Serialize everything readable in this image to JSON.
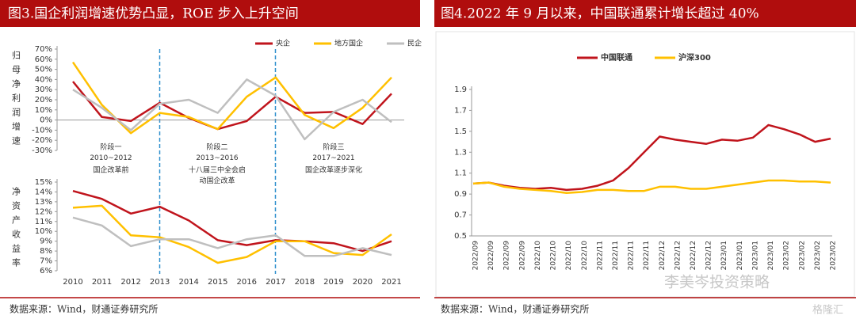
{
  "figures": [
    {
      "title": "图3.国企利润增速优势凸显，ROE 步入上升空间",
      "source": "数据来源：Wind，财通证券研究所"
    },
    {
      "title": "图4.2022 年 9 月以来，中国联通累计增长超过 40%",
      "source": "数据来源：Wind，财通证券研究所"
    }
  ],
  "watermark": [
    "李美岑投资策略",
    "格隆汇"
  ],
  "chart_data": [
    {
      "type": "line",
      "ylabel": "归母净利润增速",
      "ylim": [
        -30,
        70
      ],
      "yticks": [
        {
          "value": 70,
          "label": "70%"
        },
        {
          "value": 60,
          "label": "60%"
        },
        {
          "value": 50,
          "label": "50%"
        },
        {
          "value": 40,
          "label": "40%"
        },
        {
          "value": 30,
          "label": "30%"
        },
        {
          "value": 20,
          "label": "20%"
        },
        {
          "value": 10,
          "label": "10%"
        },
        {
          "value": 0,
          "label": "0%"
        },
        {
          "value": -10,
          "label": "-10%"
        },
        {
          "value": -20,
          "label": "-20%"
        },
        {
          "value": -30,
          "label": "-30%"
        }
      ],
      "legend": "top-right",
      "series": [
        {
          "name": "央企",
          "color": "#c0141c",
          "values": [
            38,
            3,
            -1,
            17,
            2,
            -9,
            -1,
            23,
            7,
            8,
            -4,
            26
          ]
        },
        {
          "name": "地方国企",
          "color": "#ffc000",
          "values": [
            57,
            15,
            -13,
            7,
            3,
            -9,
            23,
            42,
            5,
            -8,
            12,
            42
          ]
        },
        {
          "name": "民企",
          "color": "#bfbfbf",
          "values": [
            30,
            12,
            -10,
            16,
            20,
            7,
            40,
            24,
            -19,
            8,
            20,
            -2
          ]
        }
      ],
      "annotations": [
        [
          "阶段一",
          "2010~2012",
          "国企改革前"
        ],
        [
          "阶段二",
          "2013~2016",
          "十八届三中全会启",
          "动国企改革"
        ],
        [
          "阶段三",
          "2017~2021",
          "国企改革逐步深化"
        ]
      ]
    },
    {
      "type": "line",
      "ylabel": "净资产收益率",
      "categories": [
        "2010",
        "2011",
        "2012",
        "2013",
        "2014",
        "2015",
        "2016",
        "2017",
        "2018",
        "2019",
        "2020",
        "2021"
      ],
      "ylim": [
        6,
        15
      ],
      "yticks": [
        {
          "value": 15,
          "label": "15%"
        },
        {
          "value": 14,
          "label": "14%"
        },
        {
          "value": 13,
          "label": "13%"
        },
        {
          "value": 12,
          "label": "12%"
        },
        {
          "value": 11,
          "label": "11%"
        },
        {
          "value": 10,
          "label": "10%"
        },
        {
          "value": 9,
          "label": "9%"
        },
        {
          "value": 8,
          "label": "8%"
        },
        {
          "value": 7,
          "label": "7%"
        },
        {
          "value": 6,
          "label": "6%"
        }
      ],
      "series": [
        {
          "color": "#c0141c",
          "values": [
            14.1,
            13.3,
            11.8,
            12.5,
            11.1,
            9.1,
            8.6,
            9.1,
            9.0,
            8.8,
            8.0,
            9.0
          ]
        },
        {
          "color": "#ffc000",
          "values": [
            12.4,
            12.6,
            9.6,
            9.4,
            8.4,
            6.8,
            7.4,
            9.0,
            9.0,
            7.8,
            7.6,
            9.7
          ]
        },
        {
          "color": "#bfbfbf",
          "values": [
            11.4,
            10.6,
            8.5,
            9.2,
            9.2,
            8.3,
            9.2,
            9.6,
            7.5,
            7.5,
            8.3,
            7.6
          ]
        }
      ]
    },
    {
      "type": "line",
      "x": [
        "2022/09",
        "2022/09",
        "2022/09",
        "2022/09",
        "2022/10",
        "2022/10",
        "2022/10",
        "2022/10",
        "2022/11",
        "2022/11",
        "2022/11",
        "2022/11",
        "2022/12",
        "2022/12",
        "2022/12",
        "2022/12",
        "2023/01",
        "2023/01",
        "2023/01",
        "2023/01",
        "2023/02",
        "2023/02",
        "2023/02",
        "2023/02"
      ],
      "ylim": [
        0.5,
        1.9
      ],
      "yticks": [
        0.5,
        0.7,
        0.9,
        1.1,
        1.3,
        1.5,
        1.7,
        1.9
      ],
      "legend": "top",
      "series": [
        {
          "name": "中国联通",
          "color": "#c0141c",
          "values": [
            1.0,
            1.01,
            0.98,
            0.96,
            0.95,
            0.96,
            0.94,
            0.95,
            0.98,
            1.03,
            1.15,
            1.3,
            1.45,
            1.42,
            1.4,
            1.38,
            1.42,
            1.41,
            1.44,
            1.56,
            1.52,
            1.47,
            1.4,
            1.43
          ]
        },
        {
          "name": "沪深300",
          "color": "#ffc000",
          "values": [
            1.0,
            1.01,
            0.97,
            0.95,
            0.94,
            0.93,
            0.91,
            0.92,
            0.94,
            0.94,
            0.93,
            0.93,
            0.97,
            0.97,
            0.95,
            0.95,
            0.97,
            0.99,
            1.01,
            1.03,
            1.03,
            1.02,
            1.02,
            1.01
          ]
        }
      ]
    }
  ]
}
